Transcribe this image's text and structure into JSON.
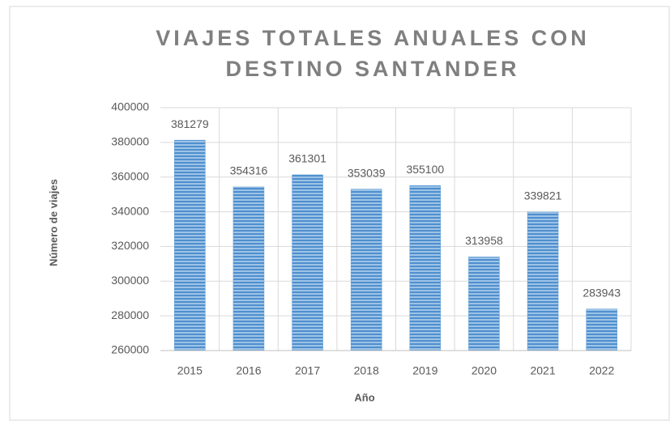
{
  "chart_data": {
    "type": "bar",
    "title": "VIAJES TOTALES ANUALES CON DESTINO SANTANDER",
    "x_label": "Año",
    "y_label": "Número de viajes",
    "categories": [
      "2015",
      "2016",
      "2017",
      "2018",
      "2019",
      "2020",
      "2021",
      "2022"
    ],
    "values": [
      381279,
      354316,
      361301,
      353039,
      355100,
      313958,
      339821,
      283943
    ],
    "color": "#5b9bd5",
    "ylim": [
      260000,
      400000
    ],
    "yticks": [
      260000,
      280000,
      300000,
      320000,
      340000,
      360000,
      380000,
      400000
    ],
    "grid": true
  }
}
